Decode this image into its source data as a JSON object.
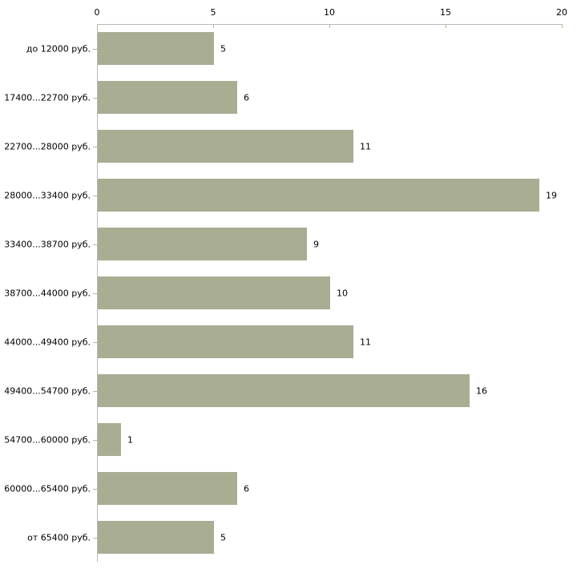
{
  "chart_data": {
    "type": "bar",
    "orientation": "horizontal",
    "title": "",
    "xlabel": "",
    "ylabel": "",
    "categories": [
      "до 12000 руб.",
      "17400...22700 руб.",
      "22700...28000 руб.",
      "28000...33400 руб.",
      "33400...38700 руб.",
      "38700...44000 руб.",
      "44000...49400 руб.",
      "49400...54700 руб.",
      "54700...60000 руб.",
      "60000...65400 руб.",
      "от 65400 руб."
    ],
    "values": [
      5,
      6,
      11,
      19,
      9,
      10,
      11,
      16,
      1,
      6,
      5
    ],
    "xlim": [
      0,
      20
    ],
    "x_ticks": [
      0,
      5,
      10,
      15,
      20
    ],
    "grid": false,
    "legend": null,
    "colors": {
      "bar": "#a9ad92",
      "axis": "#b9b9b9",
      "tick": "#bdb98e",
      "text": "#000000",
      "background": "#ffffff"
    }
  }
}
